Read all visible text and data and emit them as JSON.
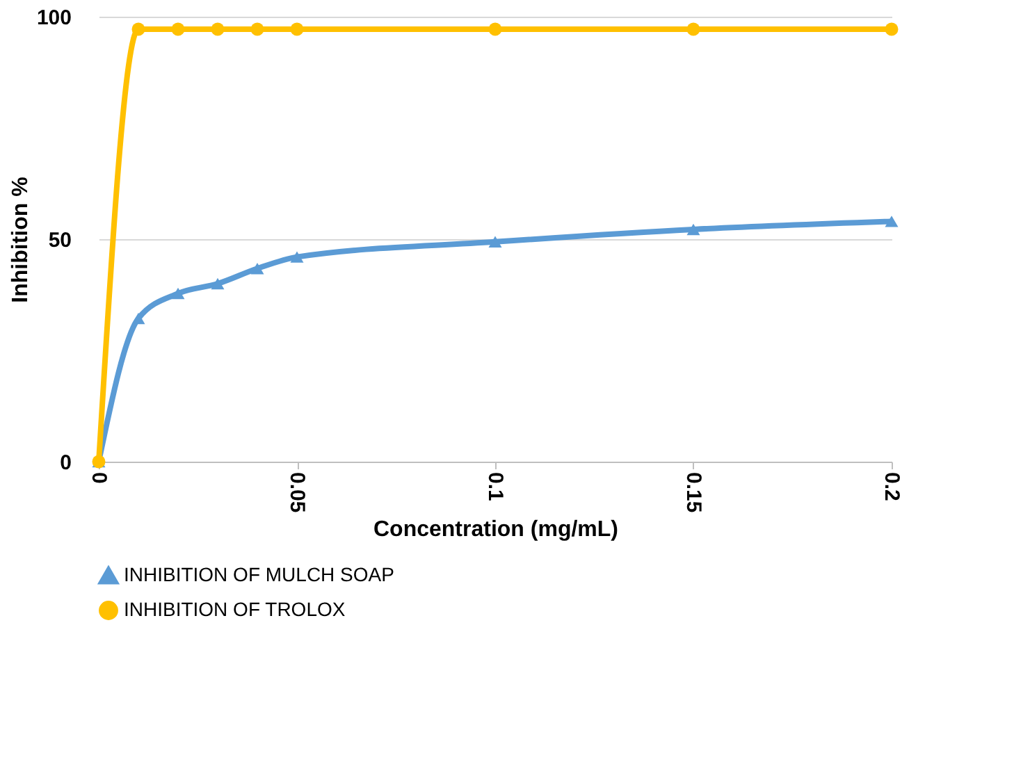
{
  "chart_data": {
    "type": "line",
    "xlabel": "Concentration (mg/mL)",
    "ylabel": "Inhibition %",
    "x": [
      0,
      0.01,
      0.02,
      0.03,
      0.04,
      0.05,
      0.1,
      0.15,
      0.2
    ],
    "series": [
      {
        "name": "INHIBITION  OF MULCH SOAP",
        "color": "#5b9bd5",
        "marker": "triangle",
        "values": [
          0,
          32.2,
          37.8,
          40,
          43.4,
          46,
          49.4,
          52.2,
          54
        ]
      },
      {
        "name": "INHIBITION OF TROLOX",
        "color": "#ffc000",
        "marker": "circle",
        "values": [
          0,
          97.2,
          97.2,
          97.2,
          97.2,
          97.2,
          97.2,
          97.2,
          97.2
        ]
      }
    ],
    "xlim": [
      0,
      0.2
    ],
    "xticks": [
      0,
      0.05,
      0.1,
      0.15,
      0.2
    ],
    "ylim": [
      0,
      100
    ],
    "yticks": [
      0,
      50,
      100
    ],
    "grid": "y",
    "legend": "bottom"
  }
}
